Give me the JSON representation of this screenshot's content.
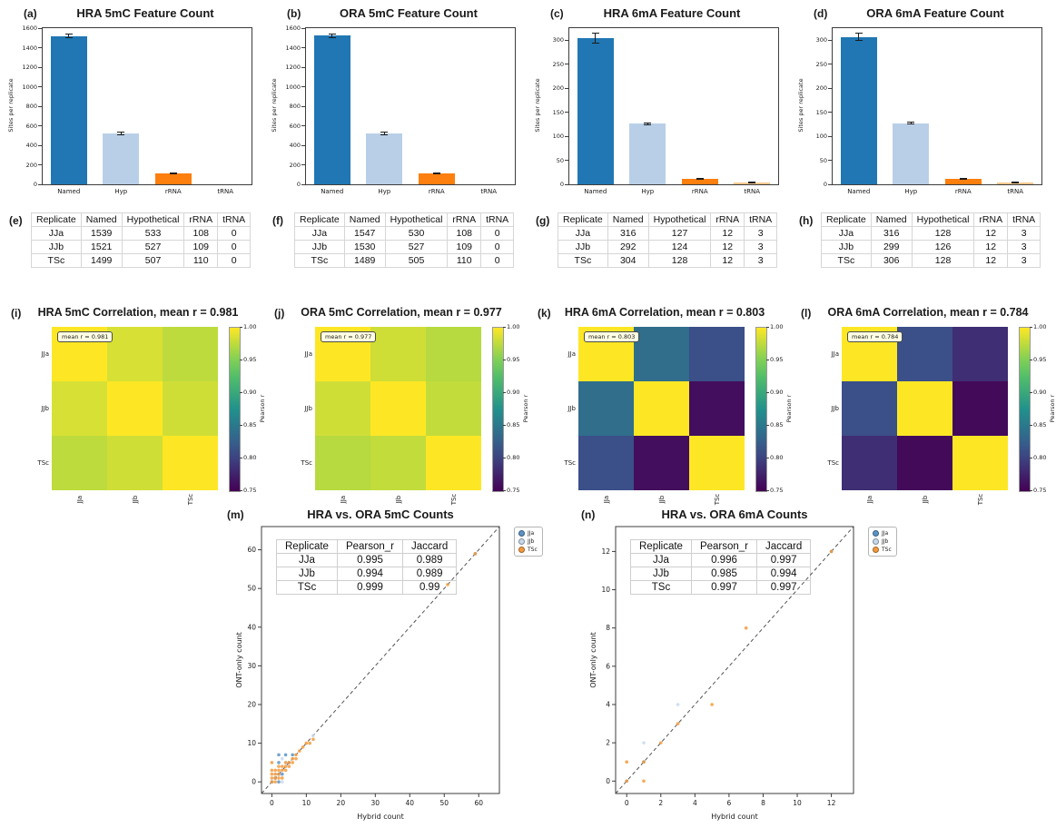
{
  "figure_background": "#ffffff",
  "replicates": [
    "JJa",
    "JJb",
    "TSc"
  ],
  "chart_data": [
    {
      "type": "bar",
      "panel_label": "(a)",
      "title": "HRA 5mC Feature Count",
      "ylabel": "Sites per replicate",
      "categories": [
        "Named",
        "Hyp",
        "rRNA",
        "tRNA"
      ],
      "values": [
        1520,
        522,
        109,
        0
      ],
      "errors": [
        15,
        12,
        5,
        0
      ],
      "bar_colors": [
        "#2077b4",
        "#b9cfe8",
        "#fd7f0e",
        "#f6c98f"
      ],
      "ylim": [
        0,
        1600
      ],
      "yticks": [
        0,
        200,
        400,
        600,
        800,
        1000,
        1200,
        1400,
        1600
      ]
    },
    {
      "type": "bar",
      "panel_label": "(b)",
      "title": "ORA 5mC Feature Count",
      "ylabel": "Sites per replicate",
      "categories": [
        "Named",
        "Hyp",
        "rRNA",
        "tRNA"
      ],
      "values": [
        1522,
        521,
        109,
        0
      ],
      "errors": [
        18,
        10,
        5,
        0
      ],
      "bar_colors": [
        "#2077b4",
        "#b9cfe8",
        "#fd7f0e",
        "#f6c98f"
      ],
      "ylim": [
        0,
        1600
      ],
      "yticks": [
        0,
        200,
        400,
        600,
        800,
        1000,
        1200,
        1400,
        1600
      ]
    },
    {
      "type": "bar",
      "panel_label": "(c)",
      "title": "HRA 6mA Feature Count",
      "ylabel": "Sites per replicate",
      "categories": [
        "Named",
        "Hyp",
        "rRNA",
        "tRNA"
      ],
      "values": [
        304,
        126,
        12,
        3
      ],
      "errors": [
        10,
        2,
        1,
        1
      ],
      "bar_colors": [
        "#2077b4",
        "#b9cfe8",
        "#fd7f0e",
        "#f6c98f"
      ],
      "ylim": [
        0,
        325
      ],
      "yticks": [
        0,
        50,
        100,
        150,
        200,
        250,
        300
      ]
    },
    {
      "type": "bar",
      "panel_label": "(d)",
      "title": "ORA 6mA Feature Count",
      "ylabel": "Sites per replicate",
      "categories": [
        "Named",
        "Hyp",
        "rRNA",
        "tRNA"
      ],
      "values": [
        307,
        127,
        12,
        3
      ],
      "errors": [
        8,
        2,
        1,
        1
      ],
      "bar_colors": [
        "#2077b4",
        "#b9cfe8",
        "#fd7f0e",
        "#f6c98f"
      ],
      "ylim": [
        0,
        325
      ],
      "yticks": [
        0,
        50,
        100,
        150,
        200,
        250,
        300
      ]
    },
    {
      "type": "table",
      "panel_label": "(e)",
      "headers": [
        "Replicate",
        "Named",
        "Hypothetical",
        "rRNA",
        "tRNA"
      ],
      "rows": [
        [
          "JJa",
          "1539",
          "533",
          "108",
          "0"
        ],
        [
          "JJb",
          "1521",
          "527",
          "109",
          "0"
        ],
        [
          "TSc",
          "1499",
          "507",
          "110",
          "0"
        ]
      ]
    },
    {
      "type": "table",
      "panel_label": "(f)",
      "headers": [
        "Replicate",
        "Named",
        "Hypothetical",
        "rRNA",
        "tRNA"
      ],
      "rows": [
        [
          "JJa",
          "1547",
          "530",
          "108",
          "0"
        ],
        [
          "JJb",
          "1530",
          "527",
          "109",
          "0"
        ],
        [
          "TSc",
          "1489",
          "505",
          "110",
          "0"
        ]
      ]
    },
    {
      "type": "table",
      "panel_label": "(g)",
      "headers": [
        "Replicate",
        "Named",
        "Hypothetical",
        "rRNA",
        "tRNA"
      ],
      "rows": [
        [
          "JJa",
          "316",
          "127",
          "12",
          "3"
        ],
        [
          "JJb",
          "292",
          "124",
          "12",
          "3"
        ],
        [
          "TSc",
          "304",
          "128",
          "12",
          "3"
        ]
      ]
    },
    {
      "type": "table",
      "panel_label": "(h)",
      "headers": [
        "Replicate",
        "Named",
        "Hypothetical",
        "rRNA",
        "tRNA"
      ],
      "rows": [
        [
          "JJa",
          "316",
          "128",
          "12",
          "3"
        ],
        [
          "JJb",
          "299",
          "126",
          "12",
          "3"
        ],
        [
          "TSc",
          "306",
          "128",
          "12",
          "3"
        ]
      ]
    },
    {
      "type": "heatmap",
      "panel_label": "(i)",
      "title": "HRA 5mC Correlation, mean r = 0.981",
      "annotation": "mean r = 0.981",
      "labels": [
        "JJa",
        "JJb",
        "TSc"
      ],
      "matrix": [
        [
          1.0,
          0.985,
          0.975
        ],
        [
          0.985,
          1.0,
          0.982
        ],
        [
          0.975,
          0.982,
          1.0
        ]
      ],
      "vmin": 0.75,
      "vmax": 1.0,
      "colorbar_label": "Pearson r",
      "colorbar_ticks": [
        1.0,
        0.95,
        0.9,
        0.85,
        0.8,
        0.75
      ]
    },
    {
      "type": "heatmap",
      "panel_label": "(j)",
      "title": "ORA 5mC Correlation, mean r = 0.977",
      "annotation": "mean r = 0.977",
      "labels": [
        "JJa",
        "JJb",
        "TSc"
      ],
      "matrix": [
        [
          1.0,
          0.982,
          0.972
        ],
        [
          0.982,
          1.0,
          0.977
        ],
        [
          0.972,
          0.977,
          1.0
        ]
      ],
      "vmin": 0.75,
      "vmax": 1.0,
      "colorbar_label": "Pearson r",
      "colorbar_ticks": [
        1.0,
        0.95,
        0.9,
        0.85,
        0.8,
        0.75
      ]
    },
    {
      "type": "heatmap",
      "panel_label": "(k)",
      "title": "HRA 6mA Correlation, mean r = 0.803",
      "annotation": "mean r = 0.803",
      "labels": [
        "JJa",
        "JJb",
        "TSc"
      ],
      "matrix": [
        [
          1.0,
          0.84,
          0.81
        ],
        [
          0.84,
          1.0,
          0.76
        ],
        [
          0.81,
          0.76,
          1.0
        ]
      ],
      "vmin": 0.75,
      "vmax": 1.0,
      "colorbar_label": "Pearson r",
      "colorbar_ticks": [
        1.0,
        0.95,
        0.9,
        0.85,
        0.8,
        0.75
      ]
    },
    {
      "type": "heatmap",
      "panel_label": "(l)",
      "title": "ORA 6mA Correlation, mean r = 0.784",
      "annotation": "mean r = 0.784",
      "labels": [
        "JJa",
        "JJb",
        "TSc"
      ],
      "matrix": [
        [
          1.0,
          0.81,
          0.785
        ],
        [
          0.81,
          1.0,
          0.757
        ],
        [
          0.785,
          0.757,
          1.0
        ]
      ],
      "vmin": 0.75,
      "vmax": 1.0,
      "colorbar_label": "Pearson r",
      "colorbar_ticks": [
        1.0,
        0.95,
        0.9,
        0.85,
        0.8,
        0.75
      ]
    },
    {
      "type": "scatter",
      "panel_label": "(m)",
      "title": "HRA vs. ORA 5mC Counts",
      "xlabel": "Hybrid count",
      "ylabel": "ONT-only count",
      "xlim": [
        -3,
        66
      ],
      "ylim": [
        -3,
        66
      ],
      "xticks": [
        0,
        10,
        20,
        30,
        40,
        50,
        60
      ],
      "yticks": [
        0,
        10,
        20,
        30,
        40,
        50,
        60
      ],
      "identity_line": true,
      "stats_table": {
        "headers": [
          "Replicate",
          "Pearson_r",
          "Jaccard"
        ],
        "rows": [
          [
            "JJa",
            "0.995",
            "0.989"
          ],
          [
            "JJb",
            "0.994",
            "0.989"
          ],
          [
            "TSc",
            "0.999",
            "0.99"
          ]
        ]
      },
      "series": [
        {
          "name": "JJa",
          "color": "#5b93c4",
          "points": [
            [
              0,
              0
            ],
            [
              1,
              1
            ],
            [
              2,
              0
            ],
            [
              2,
              2
            ],
            [
              2,
              5
            ],
            [
              2,
              7
            ],
            [
              3,
              2
            ],
            [
              4,
              7
            ],
            [
              5,
              5
            ],
            [
              6,
              7
            ],
            [
              59,
              59
            ]
          ]
        },
        {
          "name": "JJb",
          "color": "#c6d9ec",
          "points": [
            [
              1,
              2
            ],
            [
              3,
              0
            ],
            [
              3,
              6
            ],
            [
              4,
              5
            ],
            [
              12,
              12
            ]
          ]
        },
        {
          "name": "TSc",
          "color": "#f59a3d",
          "points": [
            [
              0,
              0
            ],
            [
              0,
              1
            ],
            [
              0,
              2
            ],
            [
              0,
              3
            ],
            [
              0,
              5
            ],
            [
              1,
              0
            ],
            [
              1,
              1
            ],
            [
              1,
              2
            ],
            [
              1,
              3
            ],
            [
              2,
              1
            ],
            [
              2,
              2
            ],
            [
              2,
              3
            ],
            [
              2,
              4
            ],
            [
              3,
              1
            ],
            [
              3,
              3
            ],
            [
              3,
              4
            ],
            [
              4,
              3
            ],
            [
              4,
              4
            ],
            [
              4,
              5
            ],
            [
              5,
              4
            ],
            [
              5,
              5
            ],
            [
              6,
              5
            ],
            [
              6,
              6
            ],
            [
              7,
              6
            ],
            [
              7,
              7
            ],
            [
              8,
              8
            ],
            [
              9,
              9
            ],
            [
              10,
              10
            ],
            [
              11,
              10
            ],
            [
              12,
              11
            ],
            [
              51,
              51
            ],
            [
              59,
              59
            ]
          ]
        }
      ]
    },
    {
      "type": "scatter",
      "panel_label": "(n)",
      "title": "HRA vs. ORA 6mA Counts",
      "xlabel": "Hybrid count",
      "ylabel": "ONT-only count",
      "xlim": [
        -0.65,
        13.3
      ],
      "ylim": [
        -0.65,
        13.3
      ],
      "xticks": [
        0,
        2,
        4,
        6,
        8,
        10,
        12
      ],
      "yticks": [
        0,
        2,
        4,
        6,
        8,
        10,
        12
      ],
      "identity_line": true,
      "stats_table": {
        "headers": [
          "Replicate",
          "Pearson_r",
          "Jaccard"
        ],
        "rows": [
          [
            "JJa",
            "0.996",
            "0.997"
          ],
          [
            "JJb",
            "0.985",
            "0.994"
          ],
          [
            "TSc",
            "0.997",
            "0.997"
          ]
        ]
      },
      "series": [
        {
          "name": "JJa",
          "color": "#5b93c4",
          "points": [
            [
              0,
              0
            ],
            [
              1,
              1
            ],
            [
              12,
              12
            ]
          ]
        },
        {
          "name": "JJb",
          "color": "#c6d9ec",
          "points": [
            [
              1,
              2
            ],
            [
              3,
              4
            ]
          ]
        },
        {
          "name": "TSc",
          "color": "#f59a3d",
          "points": [
            [
              0,
              0
            ],
            [
              0,
              1
            ],
            [
              1,
              0
            ],
            [
              1,
              1
            ],
            [
              2,
              2
            ],
            [
              3,
              3
            ],
            [
              5,
              4
            ],
            [
              7,
              8
            ],
            [
              12,
              12
            ]
          ]
        }
      ]
    }
  ]
}
